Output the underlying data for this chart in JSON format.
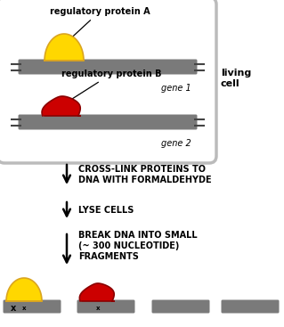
{
  "bg_color": "#ffffff",
  "living_cell_text": "living\ncell",
  "gene1_label": "gene 1",
  "gene2_label": "gene 2",
  "reg_A_label": "regulatory protein A",
  "reg_B_label": "regulatory protein B",
  "dna_color": "#7a7a7a",
  "yellow_color": "#FFD700",
  "yellow_dark": "#DAA520",
  "red_color": "#CC0000",
  "red_dark": "#8B0000",
  "step1": "CROSS-LINK PROTEINS TO\nDNA WITH FORMALDEHYDE",
  "step2": "LYSE CELLS",
  "step3": "BREAK DNA INTO SMALL\n(~ 300 NUCLEOTIDE)\nFRAGMENTS",
  "text_color": "#000000",
  "frag_x_label": "x"
}
